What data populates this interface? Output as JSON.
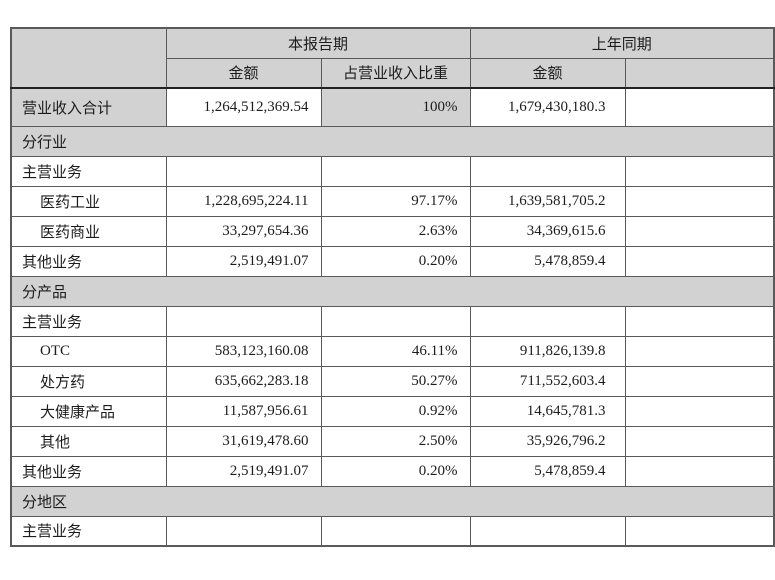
{
  "colors": {
    "header_background": "#d2d2d2",
    "section_background": "#d2d2d2",
    "cell_background": "#ffffff",
    "grid_line": "#5a5a5a",
    "strong_line": "#222222",
    "text": "#1c1c1c"
  },
  "table": {
    "header": {
      "corner": "",
      "period_current": "本报告期",
      "period_previous": "上年同期",
      "sub_current_amount": "金额",
      "sub_current_ratio": "占营业收入比重",
      "sub_previous_amount": "金额",
      "sub_previous_ratio": ""
    },
    "rows": [
      {
        "type": "total",
        "label": "营业收入合计",
        "indent": false,
        "amount": "1,264,512,369.54",
        "ratio": "100%",
        "prev_amount": "1,679,430,180.3",
        "prev_ratio": ""
      },
      {
        "type": "section",
        "label": "分行业"
      },
      {
        "type": "data",
        "label": "主营业务",
        "indent": false,
        "amount": "",
        "ratio": "",
        "prev_amount": "",
        "prev_ratio": ""
      },
      {
        "type": "data",
        "label": "医药工业",
        "indent": true,
        "amount": "1,228,695,224.11",
        "ratio": "97.17%",
        "prev_amount": "1,639,581,705.2",
        "prev_ratio": ""
      },
      {
        "type": "data",
        "label": "医药商业",
        "indent": true,
        "amount": "33,297,654.36",
        "ratio": "2.63%",
        "prev_amount": "34,369,615.6",
        "prev_ratio": ""
      },
      {
        "type": "data",
        "label": "其他业务",
        "indent": false,
        "amount": "2,519,491.07",
        "ratio": "0.20%",
        "prev_amount": "5,478,859.4",
        "prev_ratio": ""
      },
      {
        "type": "section",
        "label": "分产品"
      },
      {
        "type": "data",
        "label": "主营业务",
        "indent": false,
        "amount": "",
        "ratio": "",
        "prev_amount": "",
        "prev_ratio": ""
      },
      {
        "type": "data",
        "label": "OTC",
        "indent": true,
        "amount": "583,123,160.08",
        "ratio": "46.11%",
        "prev_amount": "911,826,139.8",
        "prev_ratio": ""
      },
      {
        "type": "data",
        "label": "处方药",
        "indent": true,
        "amount": "635,662,283.18",
        "ratio": "50.27%",
        "prev_amount": "711,552,603.4",
        "prev_ratio": ""
      },
      {
        "type": "data",
        "label": "大健康产品",
        "indent": true,
        "amount": "11,587,956.61",
        "ratio": "0.92%",
        "prev_amount": "14,645,781.3",
        "prev_ratio": ""
      },
      {
        "type": "data",
        "label": "其他",
        "indent": true,
        "amount": "31,619,478.60",
        "ratio": "2.50%",
        "prev_amount": "35,926,796.2",
        "prev_ratio": ""
      },
      {
        "type": "data",
        "label": "其他业务",
        "indent": false,
        "amount": "2,519,491.07",
        "ratio": "0.20%",
        "prev_amount": "5,478,859.4",
        "prev_ratio": ""
      },
      {
        "type": "section",
        "label": "分地区"
      },
      {
        "type": "data",
        "label": "主营业务",
        "indent": false,
        "amount": "",
        "ratio": "",
        "prev_amount": "",
        "prev_ratio": ""
      }
    ]
  }
}
